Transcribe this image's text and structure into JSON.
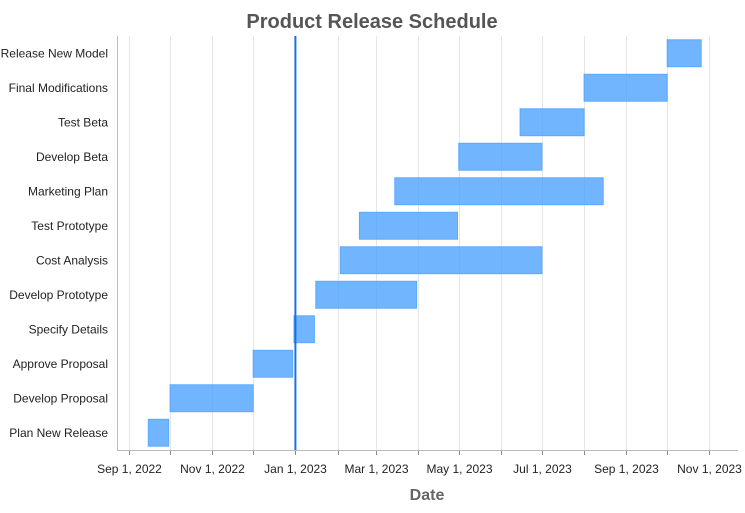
{
  "chart_data": {
    "type": "gantt",
    "title": "Product Release Schedule",
    "xlabel": "Date",
    "ylabel": "",
    "x_axis": {
      "type": "date",
      "min": "2022-08-23",
      "max": "2023-11-22",
      "ticks": [
        {
          "date": "2022-09-01",
          "label": "Sep 1, 2022"
        },
        {
          "date": "2022-10-01",
          "label": ""
        },
        {
          "date": "2022-11-01",
          "label": "Nov 1, 2022"
        },
        {
          "date": "2022-12-01",
          "label": ""
        },
        {
          "date": "2023-01-01",
          "label": "Jan 1, 2023"
        },
        {
          "date": "2023-02-01",
          "label": ""
        },
        {
          "date": "2023-03-01",
          "label": "Mar 1, 2023"
        },
        {
          "date": "2023-04-01",
          "label": ""
        },
        {
          "date": "2023-05-01",
          "label": "May 1, 2023"
        },
        {
          "date": "2023-06-01",
          "label": ""
        },
        {
          "date": "2023-07-01",
          "label": "Jul 1, 2023"
        },
        {
          "date": "2023-08-01",
          "label": ""
        },
        {
          "date": "2023-09-01",
          "label": "Sep 1, 2023"
        },
        {
          "date": "2023-10-01",
          "label": ""
        },
        {
          "date": "2023-11-01",
          "label": "Nov 1, 2023"
        }
      ]
    },
    "grid": true,
    "marker_line": {
      "date": "2023-01-01",
      "color": "#1a73d9"
    },
    "bar_color": "#4da3ff",
    "tasks": [
      {
        "name": "Release New Model",
        "start": "2023-10-01",
        "end": "2023-10-26"
      },
      {
        "name": "Final Modifications",
        "start": "2023-08-01",
        "end": "2023-10-01"
      },
      {
        "name": "Test Beta",
        "start": "2023-06-15",
        "end": "2023-08-01"
      },
      {
        "name": "Develop Beta",
        "start": "2023-05-01",
        "end": "2023-07-01"
      },
      {
        "name": "Marketing Plan",
        "start": "2023-03-15",
        "end": "2023-08-15"
      },
      {
        "name": "Test Prototype",
        "start": "2023-02-17",
        "end": "2023-04-30"
      },
      {
        "name": "Cost Analysis",
        "start": "2023-02-03",
        "end": "2023-07-01"
      },
      {
        "name": "Develop Prototype",
        "start": "2023-01-16",
        "end": "2023-03-31"
      },
      {
        "name": "Specify Details",
        "start": "2022-12-31",
        "end": "2023-01-15"
      },
      {
        "name": "Approve Proposal",
        "start": "2022-12-01",
        "end": "2022-12-30"
      },
      {
        "name": "Develop Proposal",
        "start": "2022-10-01",
        "end": "2022-12-01"
      },
      {
        "name": "Plan New Release",
        "start": "2022-09-15",
        "end": "2022-09-30"
      }
    ]
  }
}
